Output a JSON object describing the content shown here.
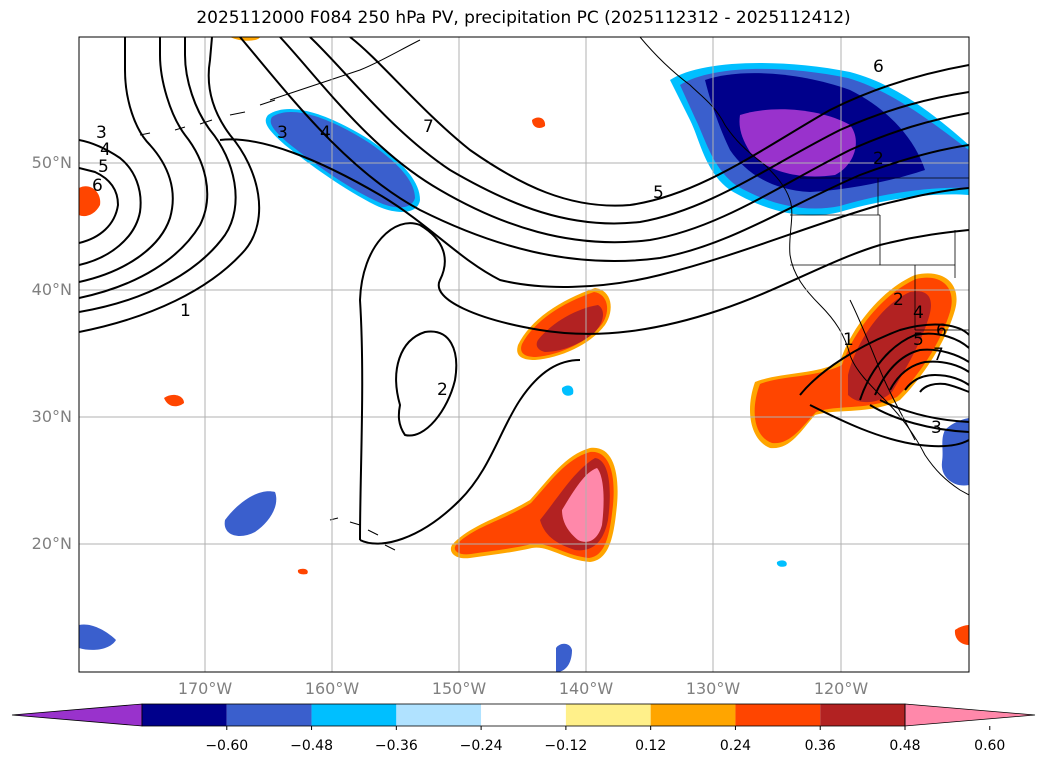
{
  "title": "2025112000 F084 250 hPa PV, precipitation PC (2025112312 - 2025112412)",
  "lat_labels": [
    "50°N",
    "40°N",
    "30°N",
    "20°N"
  ],
  "lon_labels": [
    "170°W",
    "160°W",
    "150°W",
    "140°W",
    "130°W",
    "120°W"
  ],
  "colorbar": {
    "colors": [
      "#9932cc",
      "#00008b",
      "#3a5fcd",
      "#00bfff",
      "#b0e2ff",
      "#ffffff",
      "#fff08a",
      "#ffa500",
      "#ff4500",
      "#b22222",
      "#ff88aa"
    ],
    "ticks": [
      "−0.60",
      "−0.48",
      "−0.36",
      "−0.24",
      "−0.12",
      "0.12",
      "0.24",
      "0.36",
      "0.48",
      "0.60"
    ]
  },
  "contour_labels": [
    "3",
    "4",
    "5",
    "6",
    "1",
    "3",
    "4",
    "7",
    "5",
    "6",
    "2",
    "2",
    "1",
    "2",
    "4",
    "5",
    "6",
    "7",
    "3"
  ]
}
